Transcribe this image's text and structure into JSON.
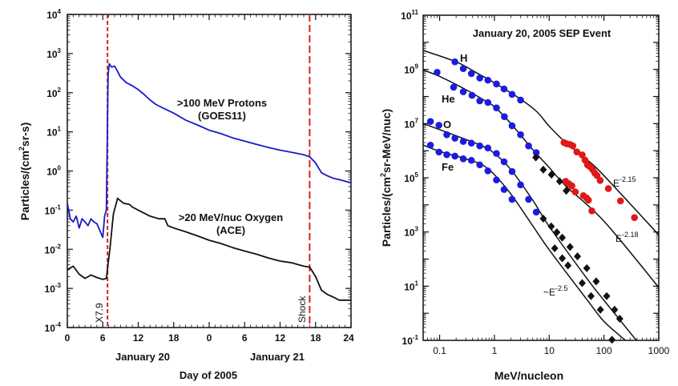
{
  "chart_data": [
    {
      "type": "line",
      "xlabel": "Day of 2005",
      "ylabel": "Particles/(cm²sr-s)",
      "ylabel_parts": [
        "Particles/(cm",
        "2",
        "sr-s)"
      ],
      "y_scale": "log",
      "ylim": [
        0.0001,
        10000
      ],
      "y_ticks": [
        {
          "base": "10",
          "exp": "4"
        },
        {
          "base": "10",
          "exp": "3"
        },
        {
          "base": "10",
          "exp": "2"
        },
        {
          "base": "10",
          "exp": "1"
        },
        {
          "base": "10",
          "exp": "0"
        },
        {
          "base": "10",
          "exp": "-1"
        },
        {
          "base": "10",
          "exp": "-2"
        },
        {
          "base": "10",
          "exp": "-3"
        },
        {
          "base": "10",
          "exp": "-4"
        }
      ],
      "x_unit": "hours from January 20 00:00",
      "xlim": [
        0,
        48
      ],
      "x_tick_labels": [
        "0",
        "6",
        "12",
        "18",
        "0",
        "6",
        "12",
        "18",
        "24"
      ],
      "date_labels": [
        {
          "text": "January 20",
          "hour": 12
        },
        {
          "text": "January 21",
          "hour": 36
        }
      ],
      "grid": false,
      "series": [
        {
          "name": ">100 MeV Protons (GOES11)",
          "label_lines": [
            ">100 MeV Protons",
            "(GOES11)"
          ],
          "color": "#1a1ac8",
          "x": [
            0,
            0.5,
            1,
            1.5,
            2,
            2.5,
            3,
            3.5,
            4,
            4.5,
            5,
            5.5,
            6,
            6.3,
            6.6,
            6.9,
            7.1,
            7.5,
            8,
            8.5,
            9,
            10,
            11,
            12,
            13,
            14,
            15,
            16,
            18,
            20,
            22,
            24,
            26,
            28,
            30,
            32,
            34,
            36,
            38,
            40,
            41,
            42,
            43,
            44,
            45,
            46,
            47,
            48
          ],
          "y": [
            0.15,
            0.06,
            0.05,
            0.07,
            0.035,
            0.06,
            0.05,
            0.04,
            0.06,
            0.05,
            0.045,
            0.03,
            0.02,
            0.07,
            0.1,
            300,
            550,
            450,
            480,
            350,
            250,
            180,
            150,
            120,
            90,
            65,
            50,
            42,
            30,
            20,
            15,
            11,
            9,
            7,
            5.8,
            4.8,
            4,
            3.4,
            3,
            2.6,
            2.3,
            1.6,
            0.9,
            0.75,
            0.65,
            0.6,
            0.55,
            0.5
          ]
        },
        {
          "name": ">20 MeV/nuc Oxygen (ACE)",
          "label_lines": [
            ">20 MeV/nuc Oxygen",
            "(ACE)"
          ],
          "color": "#111111",
          "x": [
            0,
            1,
            2,
            3,
            4,
            5,
            6,
            6.6,
            7.2,
            7.8,
            8.5,
            9.5,
            10.5,
            11,
            12,
            14,
            15.5,
            16.5,
            17,
            18,
            20,
            22,
            24,
            26,
            28,
            30,
            32,
            34,
            36,
            38,
            40,
            41,
            42,
            43,
            44,
            45,
            46,
            47,
            48
          ],
          "y": [
            0.003,
            0.0037,
            0.0023,
            0.0018,
            0.0022,
            0.0019,
            0.0017,
            0.0018,
            0.01,
            0.08,
            0.2,
            0.15,
            0.14,
            0.12,
            0.1,
            0.07,
            0.06,
            0.06,
            0.04,
            0.035,
            0.028,
            0.022,
            0.017,
            0.014,
            0.011,
            0.009,
            0.0075,
            0.006,
            0.005,
            0.0045,
            0.0037,
            0.0035,
            0.002,
            0.0009,
            0.0007,
            0.0006,
            0.0005,
            0.0005,
            0.0005
          ]
        }
      ],
      "annotations": [
        {
          "text": "X7.9",
          "hour": 6.8,
          "style": "dashed-vertical-line",
          "color": "#d42424"
        },
        {
          "text": "Shock",
          "hour": 41,
          "style": "dashed-vertical-line",
          "color": "#d42424"
        }
      ]
    },
    {
      "type": "scatter",
      "title": "January 20, 2005 SEP Event",
      "xlabel": "MeV/nucleon",
      "ylabel": "Particles/(cm²sr-MeV/nuc)",
      "ylabel_parts": [
        "Particles/(cm",
        "2",
        "sr-MeV/nuc)"
      ],
      "x_scale": "log",
      "y_scale": "log",
      "xlim": [
        0.05,
        1000
      ],
      "ylim": [
        0.1,
        100000000000.0
      ],
      "x_tick_labels": [
        {
          "v": 0.1,
          "t": "0.1"
        },
        {
          "v": 1,
          "t": "1"
        },
        {
          "v": 10,
          "t": "10"
        },
        {
          "v": 100,
          "t": "100"
        },
        {
          "v": 1000,
          "t": "1000"
        }
      ],
      "y_ticks": [
        {
          "v": 100000000000.0,
          "base": "10",
          "exp": "11"
        },
        {
          "v": 1000000000.0,
          "base": "10",
          "exp": "9"
        },
        {
          "v": 10000000.0,
          "base": "10",
          "exp": "7"
        },
        {
          "v": 100000.0,
          "base": "10",
          "exp": "5"
        },
        {
          "v": 1000.0,
          "base": "10",
          "exp": "3"
        },
        {
          "v": 10,
          "base": "10",
          "exp": "1"
        },
        {
          "v": 0.1,
          "base": "10",
          "exp": "-1"
        }
      ],
      "grid": false,
      "species": [
        {
          "name": "H",
          "fit": [
            [
              0.05,
              5000000000.0
            ],
            [
              0.2,
              1900000000.0
            ],
            [
              0.5,
              700000000.0
            ],
            [
              1,
              320000000.0
            ],
            [
              3,
              80000000.0
            ],
            [
              6,
              27000000.0
            ],
            [
              10,
              8000000.0
            ],
            [
              20,
              2000000.0
            ],
            [
              50,
              450000.0
            ],
            [
              100,
              120000.0
            ],
            [
              1000,
              780
            ]
          ],
          "blue": [
            [
              0.19,
              1900000000.0
            ],
            [
              0.27,
              1070000000.0
            ],
            [
              0.38,
              700000000.0
            ],
            [
              0.54,
              480000000.0
            ],
            [
              0.76,
              400000000.0
            ],
            [
              1.09,
              290000000.0
            ],
            [
              1.5,
              190000000.0
            ],
            [
              2.1,
              120000000.0
            ],
            [
              3.0,
              74000000.0
            ]
          ],
          "red": [
            [
              18.6,
              2000000.0
            ],
            [
              21,
              1800000.0
            ],
            [
              24,
              1700000.0
            ],
            [
              27,
              1500000.0
            ],
            [
              32,
              900000.0
            ],
            [
              40,
              700000.0
            ],
            [
              45,
              450000.0
            ],
            [
              50,
              300000.0
            ],
            [
              55,
              260000.0
            ],
            [
              62,
              200000.0
            ],
            [
              68,
              150000.0
            ],
            [
              75,
              120000.0
            ],
            [
              85,
              80000.0
            ],
            [
              120,
              40000.0
            ],
            [
              200,
              14000.0
            ],
            [
              360,
              3400.0
            ]
          ],
          "black": []
        },
        {
          "name": "He",
          "fit": [
            [
              0.05,
              950000000.0
            ],
            [
              0.1,
              550000000.0
            ],
            [
              0.3,
              180000000.0
            ],
            [
              0.6,
              80000000.0
            ],
            [
              1,
              42000000.0
            ],
            [
              2,
              10000000.0
            ],
            [
              5,
              1100000.0
            ],
            [
              10,
              240000.0
            ],
            [
              20,
              50000.0
            ],
            [
              100,
              2500.0
            ],
            [
              1000,
              9
            ]
          ],
          "blue": [
            [
              0.09,
              780000000.0
            ],
            [
              0.18,
              220000000.0
            ],
            [
              0.27,
              150000000.0
            ],
            [
              0.39,
              110000000.0
            ],
            [
              0.54,
              69000000.0
            ],
            [
              0.76,
              60000000.0
            ],
            [
              1.09,
              38000000.0
            ],
            [
              1.52,
              18000000.0
            ],
            [
              2.1,
              8300000.0
            ],
            [
              3.0,
              3900000.0
            ],
            [
              4.2,
              1500000.0
            ],
            [
              5.8,
              850000.0
            ]
          ],
          "red": [
            [
              20,
              74000.0
            ],
            [
              23,
              60000.0
            ],
            [
              26,
              50000.0
            ],
            [
              30,
              30000.0
            ],
            [
              42,
              22000.0
            ],
            [
              48,
              18000.0
            ],
            [
              52,
              15000.0
            ],
            [
              60,
              6000.0
            ]
          ],
          "black": [
            [
              5.7,
              560000.0
            ],
            [
              7.8,
              200000.0
            ],
            [
              11,
              130000.0
            ],
            [
              15.5,
              74000.0
            ],
            [
              20.5,
              33000.0
            ]
          ]
        },
        {
          "name": "O",
          "fit": [
            [
              0.05,
              10000000.0
            ],
            [
              0.1,
              6000000.0
            ],
            [
              0.3,
              2600000.0
            ],
            [
              0.6,
              1500000.0
            ],
            [
              1,
              800000.0
            ],
            [
              2,
              200000.0
            ],
            [
              5,
              15000.0
            ],
            [
              10,
              1600.0
            ],
            [
              50,
              18
            ],
            [
              100,
              3
            ],
            [
              390,
              0.1
            ]
          ],
          "blue": [
            [
              0.068,
              12000000.0
            ],
            [
              0.097,
              8700000.0
            ],
            [
              0.135,
              3900000.0
            ],
            [
              0.19,
              2900000.0
            ],
            [
              0.27,
              2200000.0
            ],
            [
              0.38,
              1900000.0
            ],
            [
              0.54,
              1500000.0
            ],
            [
              0.76,
              1260000.0
            ],
            [
              1.09,
              790000.0
            ],
            [
              1.5,
              390000.0
            ],
            [
              2.1,
              170000.0
            ],
            [
              3.0,
              55000.0
            ],
            [
              4.2,
              16000.0
            ],
            [
              5.8,
              5400.0
            ]
          ],
          "red": [],
          "black": [
            [
              7.8,
              3100.0
            ],
            [
              10.9,
              1600.0
            ],
            [
              13.8,
              980
            ],
            [
              17.3,
              620
            ],
            [
              24,
              280
            ],
            [
              32.8,
              126
            ],
            [
              48.5,
              46
            ],
            [
              72,
              15
            ],
            [
              112,
              4.3
            ],
            [
              156,
              1.35
            ],
            [
              194,
              0.63
            ]
          ]
        },
        {
          "name": "Fe",
          "fit": [
            [
              0.05,
              1600000.0
            ],
            [
              0.1,
              950000.0
            ],
            [
              0.3,
              500000.0
            ],
            [
              0.6,
              300000.0
            ],
            [
              1,
              130000.0
            ],
            [
              2,
              25000.0
            ],
            [
              5,
              1700.0
            ],
            [
              10,
              220.0
            ],
            [
              50,
              3
            ],
            [
              100,
              0.5
            ],
            [
              246,
              0.1
            ]
          ],
          "blue": [
            [
              0.068,
              1600000.0
            ],
            [
              0.097,
              890000.0
            ],
            [
              0.135,
              710000.0
            ],
            [
              0.19,
              630000.0
            ],
            [
              0.27,
              500000.0
            ],
            [
              0.38,
              440000.0
            ],
            [
              0.54,
              300000.0
            ],
            [
              0.76,
              180000.0
            ],
            [
              1.09,
              83000.0
            ],
            [
              1.5,
              37000.0
            ],
            [
              2.1,
              16000.0
            ]
          ],
          "red": [],
          "black": [
            [
              12.6,
              250
            ],
            [
              17.3,
              107
            ],
            [
              22,
              58
            ],
            [
              40,
              13
            ],
            [
              58,
              4.3
            ],
            [
              86,
              1.35
            ],
            [
              140,
              0.105
            ]
          ]
        }
      ],
      "fit_labels": [
        {
          "text": "E",
          "exp": "-2.15"
        },
        {
          "text": "E",
          "exp": "-2.18"
        },
        {
          "text": "~E",
          "exp": "-2.5"
        }
      ],
      "colors": {
        "low_energy": "#1c1ce0",
        "high_energy": "#e01818",
        "heavy_high": "#111111",
        "fit": "#111111"
      }
    }
  ]
}
